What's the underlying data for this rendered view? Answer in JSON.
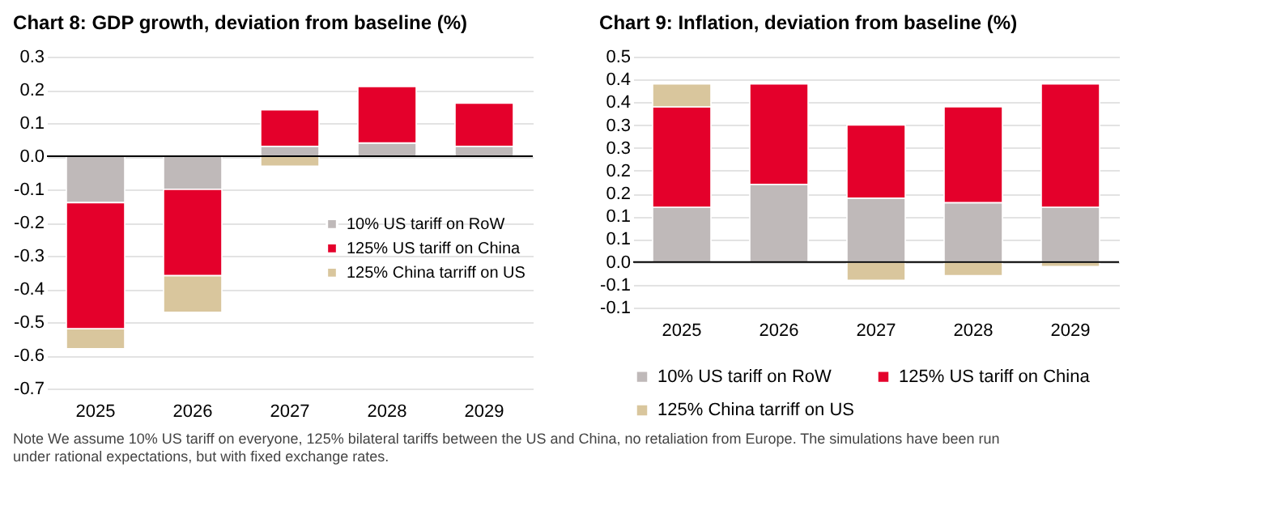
{
  "chart_data": [
    {
      "type": "bar",
      "title": "Chart 8: GDP growth, deviation from baseline (%)",
      "categories": [
        "2025",
        "2026",
        "2027",
        "2028",
        "2029"
      ],
      "stacked": true,
      "series": [
        {
          "name": "10% US tariff on RoW",
          "color": "#bfb9b9",
          "values": [
            -0.14,
            -0.1,
            0.03,
            0.04,
            0.03
          ]
        },
        {
          "name": "125% US tariff on China",
          "color": "#e4002b",
          "values": [
            -0.38,
            -0.26,
            0.11,
            0.17,
            0.13
          ]
        },
        {
          "name": "125% China tarriff on US",
          "color": "#d9c69d",
          "values": [
            -0.06,
            -0.11,
            -0.03,
            0,
            0
          ]
        }
      ],
      "ylim": [
        -0.7,
        0.3
      ],
      "yticks": [
        {
          "value": -0.7,
          "label": "-0.7"
        },
        {
          "value": -0.6,
          "label": "-0.6"
        },
        {
          "value": -0.5,
          "label": "-0.5"
        },
        {
          "value": -0.4,
          "label": "-0.4"
        },
        {
          "value": -0.3,
          "label": "-0.3"
        },
        {
          "value": -0.2,
          "label": "-0.2"
        },
        {
          "value": -0.1,
          "label": "-0.1"
        },
        {
          "value": 0,
          "label": "0.0"
        },
        {
          "value": 0.1,
          "label": "0.1"
        },
        {
          "value": 0.2,
          "label": "0.2"
        },
        {
          "value": 0.3,
          "label": "0.3"
        }
      ],
      "grid": "y",
      "legend": "right"
    },
    {
      "type": "bar",
      "title": "Chart 9: Inflation, deviation from baseline (%)",
      "categories": [
        "2025",
        "2026",
        "2027",
        "2028",
        "2029"
      ],
      "stacked": true,
      "series": [
        {
          "name": "10% US tariff on RoW",
          "color": "#bfb9b9",
          "values": [
            0.12,
            0.17,
            0.14,
            0.13,
            0.12
          ]
        },
        {
          "name": "125% US tariff on China",
          "color": "#e4002b",
          "values": [
            0.22,
            0.22,
            0.16,
            0.21,
            0.27
          ]
        },
        {
          "name": "125% China tarriff on US",
          "color": "#d9c69d",
          "values": [
            0.05,
            0,
            -0.04,
            -0.03,
            -0.01
          ]
        }
      ],
      "ylim": [
        -0.1,
        0.45
      ],
      "yticks": [
        {
          "value": -0.1,
          "label": "-0.1"
        },
        {
          "value": -0.05,
          "label": "-0.1"
        },
        {
          "value": 0,
          "label": "0.0"
        },
        {
          "value": 0.05,
          "label": "0.1"
        },
        {
          "value": 0.1,
          "label": "0.1"
        },
        {
          "value": 0.15,
          "label": "0.2"
        },
        {
          "value": 0.2,
          "label": "0.2"
        },
        {
          "value": 0.25,
          "label": "0.3"
        },
        {
          "value": 0.3,
          "label": "0.3"
        },
        {
          "value": 0.35,
          "label": "0.4"
        },
        {
          "value": 0.4,
          "label": "0.4"
        },
        {
          "value": 0.45,
          "label": "0.5"
        }
      ],
      "grid": "y",
      "legend": "bottom",
      "annotations": [
        "Note We assume 10% US tariff on everyone, 125% bilateral tariffs between the US and China, no retaliation from Europe. The simulations have been run under rational expectations, but with fixed exchange rates."
      ]
    }
  ]
}
